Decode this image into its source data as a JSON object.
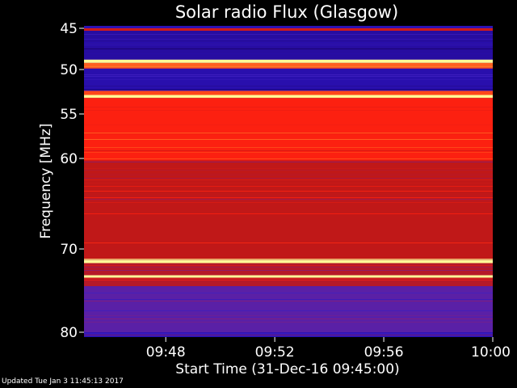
{
  "chart_data": {
    "type": "heatmap",
    "title": "Solar radio Flux (Glasgow)",
    "xlabel": "Start Time (31-Dec-16 09:45:00)",
    "ylabel": "Frequency [MHz]",
    "x_range": [
      "09:45:00",
      "10:00:00"
    ],
    "x_ticks": [
      "09:48",
      "09:52",
      "09:56",
      "10:00"
    ],
    "y_range": [
      45,
      80
    ],
    "y_ticks": [
      "45",
      "50",
      "55",
      "60",
      "70",
      "80"
    ],
    "y_tick_values": [
      45,
      50,
      55,
      60,
      70,
      80
    ],
    "grid": false,
    "colormap": [
      "#1a0060",
      "#2a10b0",
      "#4020c0",
      "#802080",
      "#c01818",
      "#ff2010",
      "#ff6020",
      "#ffc040",
      "#ffffa0"
    ],
    "bands_mhz": [
      {
        "from": 45.0,
        "to": 45.3,
        "level": 0.55
      },
      {
        "from": 45.3,
        "to": 48.8,
        "level": 0.1
      },
      {
        "from": 48.8,
        "to": 49.2,
        "level": 0.98
      },
      {
        "from": 49.2,
        "to": 49.8,
        "level": 0.75
      },
      {
        "from": 49.8,
        "to": 52.4,
        "level": 0.12
      },
      {
        "from": 52.4,
        "to": 52.9,
        "level": 0.7
      },
      {
        "from": 52.9,
        "to": 53.2,
        "level": 0.92
      },
      {
        "from": 53.2,
        "to": 60.3,
        "level": 0.62
      },
      {
        "from": 60.3,
        "to": 71.3,
        "level": 0.5
      },
      {
        "from": 71.3,
        "to": 71.7,
        "level": 0.97
      },
      {
        "from": 71.7,
        "to": 74.5,
        "level": 0.48
      },
      {
        "from": 74.5,
        "to": 80.0,
        "level": 0.3
      }
    ],
    "bright_lines_mhz": [
      49.0,
      53.0,
      71.5,
      73.3
    ]
  },
  "footer": {
    "updated": "Updated Tue Jan  3 11:45:13 2017"
  }
}
